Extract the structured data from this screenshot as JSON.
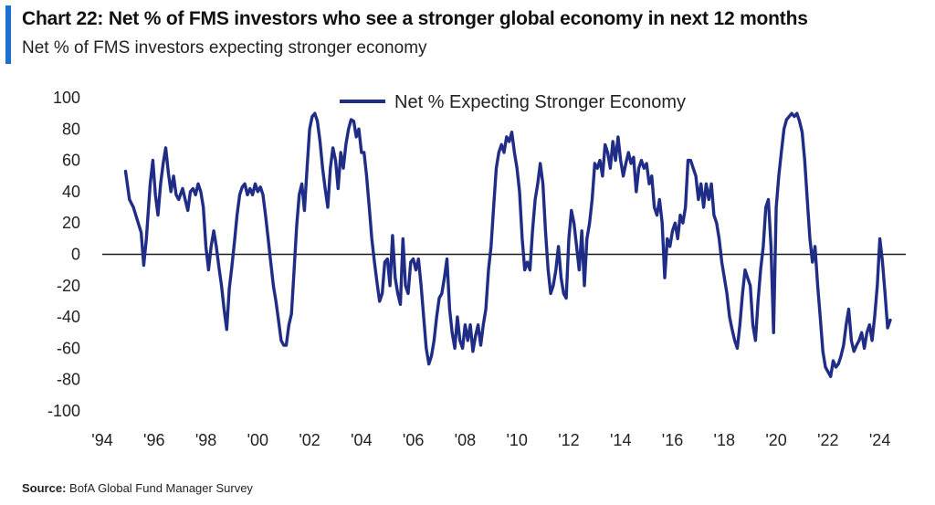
{
  "header": {
    "title": "Chart 22: Net % of FMS investors who see a stronger global economy in next 12 months",
    "subtitle": "Net % of FMS investors expecting stronger economy"
  },
  "footer": {
    "source_label": "Source:",
    "source_text": "BofA Global Fund Manager Survey"
  },
  "colors": {
    "accent": "#1a6fd1",
    "series": "#1f2d86",
    "axis": "#1a1a1a"
  },
  "chart_data": {
    "type": "line",
    "title": "Chart 22: Net % of FMS investors who see a stronger global economy in next 12 months",
    "subtitle": "Net % of FMS investors expecting stronger economy",
    "xlabel": "",
    "ylabel": "",
    "ylim": [
      -100,
      100
    ],
    "yticks": [
      100,
      80,
      60,
      40,
      20,
      0,
      -20,
      -40,
      -60,
      -80,
      -100
    ],
    "xlim": [
      1994,
      2025
    ],
    "xticks": [
      1994,
      1996,
      1998,
      2000,
      2002,
      2004,
      2006,
      2008,
      2010,
      2012,
      2014,
      2016,
      2018,
      2020,
      2022,
      2024
    ],
    "xtick_labels": [
      "'94",
      "'96",
      "'98",
      "'00",
      "'02",
      "'04",
      "'06",
      "'08",
      "'10",
      "'12",
      "'14",
      "'16",
      "'18",
      "'20",
      "'22",
      "'24"
    ],
    "grid": false,
    "zero_line": true,
    "legend": {
      "position": "top-center"
    },
    "series": [
      {
        "name": "Net % Expecting Stronger Economy",
        "points": [
          [
            1994.9,
            53
          ],
          [
            1995.05,
            35
          ],
          [
            1995.2,
            30
          ],
          [
            1995.35,
            22
          ],
          [
            1995.5,
            14
          ],
          [
            1995.6,
            -7
          ],
          [
            1995.7,
            10
          ],
          [
            1995.85,
            45
          ],
          [
            1995.95,
            60
          ],
          [
            1996.05,
            38
          ],
          [
            1996.15,
            25
          ],
          [
            1996.25,
            45
          ],
          [
            1996.35,
            58
          ],
          [
            1996.45,
            68
          ],
          [
            1996.55,
            52
          ],
          [
            1996.65,
            40
          ],
          [
            1996.75,
            50
          ],
          [
            1996.85,
            38
          ],
          [
            1996.95,
            35
          ],
          [
            1997.1,
            42
          ],
          [
            1997.2,
            35
          ],
          [
            1997.3,
            28
          ],
          [
            1997.4,
            40
          ],
          [
            1997.5,
            42
          ],
          [
            1997.6,
            38
          ],
          [
            1997.7,
            45
          ],
          [
            1997.8,
            40
          ],
          [
            1997.9,
            30
          ],
          [
            1998.0,
            5
          ],
          [
            1998.1,
            -10
          ],
          [
            1998.2,
            5
          ],
          [
            1998.3,
            15
          ],
          [
            1998.4,
            5
          ],
          [
            1998.5,
            -8
          ],
          [
            1998.6,
            -20
          ],
          [
            1998.7,
            -35
          ],
          [
            1998.8,
            -48
          ],
          [
            1998.9,
            -22
          ],
          [
            1999.0,
            -8
          ],
          [
            1999.1,
            8
          ],
          [
            1999.2,
            25
          ],
          [
            1999.3,
            38
          ],
          [
            1999.4,
            43
          ],
          [
            1999.5,
            45
          ],
          [
            1999.6,
            38
          ],
          [
            1999.7,
            42
          ],
          [
            1999.8,
            38
          ],
          [
            1999.9,
            45
          ],
          [
            2000.0,
            40
          ],
          [
            2000.1,
            43
          ],
          [
            2000.2,
            38
          ],
          [
            2000.3,
            25
          ],
          [
            2000.4,
            10
          ],
          [
            2000.5,
            -5
          ],
          [
            2000.6,
            -20
          ],
          [
            2000.7,
            -30
          ],
          [
            2000.8,
            -42
          ],
          [
            2000.9,
            -55
          ],
          [
            2001.0,
            -58
          ],
          [
            2001.1,
            -58
          ],
          [
            2001.2,
            -45
          ],
          [
            2001.3,
            -38
          ],
          [
            2001.4,
            -10
          ],
          [
            2001.5,
            18
          ],
          [
            2001.6,
            38
          ],
          [
            2001.7,
            45
          ],
          [
            2001.8,
            28
          ],
          [
            2001.9,
            55
          ],
          [
            2002.0,
            80
          ],
          [
            2002.1,
            88
          ],
          [
            2002.2,
            90
          ],
          [
            2002.3,
            85
          ],
          [
            2002.4,
            72
          ],
          [
            2002.5,
            55
          ],
          [
            2002.6,
            42
          ],
          [
            2002.7,
            30
          ],
          [
            2002.8,
            55
          ],
          [
            2002.9,
            68
          ],
          [
            2003.0,
            60
          ],
          [
            2003.1,
            42
          ],
          [
            2003.2,
            65
          ],
          [
            2003.3,
            55
          ],
          [
            2003.4,
            70
          ],
          [
            2003.5,
            80
          ],
          [
            2003.6,
            86
          ],
          [
            2003.7,
            85
          ],
          [
            2003.8,
            75
          ],
          [
            2003.9,
            80
          ],
          [
            2004.0,
            65
          ],
          [
            2004.1,
            65
          ],
          [
            2004.2,
            50
          ],
          [
            2004.3,
            30
          ],
          [
            2004.4,
            10
          ],
          [
            2004.5,
            -5
          ],
          [
            2004.6,
            -18
          ],
          [
            2004.7,
            -30
          ],
          [
            2004.8,
            -25
          ],
          [
            2004.9,
            -5
          ],
          [
            2005.0,
            -3
          ],
          [
            2005.1,
            -20
          ],
          [
            2005.2,
            12
          ],
          [
            2005.3,
            -15
          ],
          [
            2005.4,
            -25
          ],
          [
            2005.5,
            -32
          ],
          [
            2005.6,
            10
          ],
          [
            2005.7,
            -20
          ],
          [
            2005.8,
            -25
          ],
          [
            2005.9,
            -5
          ],
          [
            2006.0,
            -3
          ],
          [
            2006.1,
            -10
          ],
          [
            2006.2,
            -3
          ],
          [
            2006.3,
            -20
          ],
          [
            2006.4,
            -40
          ],
          [
            2006.5,
            -60
          ],
          [
            2006.6,
            -70
          ],
          [
            2006.7,
            -65
          ],
          [
            2006.8,
            -55
          ],
          [
            2006.9,
            -40
          ],
          [
            2007.0,
            -28
          ],
          [
            2007.1,
            -25
          ],
          [
            2007.2,
            -15
          ],
          [
            2007.3,
            -3
          ],
          [
            2007.4,
            -35
          ],
          [
            2007.5,
            -50
          ],
          [
            2007.6,
            -60
          ],
          [
            2007.7,
            -40
          ],
          [
            2007.8,
            -55
          ],
          [
            2007.9,
            -60
          ],
          [
            2008.0,
            -45
          ],
          [
            2008.1,
            -55
          ],
          [
            2008.2,
            -45
          ],
          [
            2008.3,
            -62
          ],
          [
            2008.4,
            -52
          ],
          [
            2008.5,
            -45
          ],
          [
            2008.6,
            -58
          ],
          [
            2008.7,
            -45
          ],
          [
            2008.8,
            -35
          ],
          [
            2008.9,
            -10
          ],
          [
            2009.0,
            5
          ],
          [
            2009.1,
            30
          ],
          [
            2009.2,
            55
          ],
          [
            2009.3,
            65
          ],
          [
            2009.4,
            70
          ],
          [
            2009.5,
            65
          ],
          [
            2009.6,
            75
          ],
          [
            2009.7,
            72
          ],
          [
            2009.8,
            78
          ],
          [
            2009.9,
            65
          ],
          [
            2010.0,
            55
          ],
          [
            2010.1,
            40
          ],
          [
            2010.2,
            10
          ],
          [
            2010.3,
            -10
          ],
          [
            2010.4,
            -5
          ],
          [
            2010.5,
            -10
          ],
          [
            2010.6,
            15
          ],
          [
            2010.7,
            35
          ],
          [
            2010.8,
            45
          ],
          [
            2010.9,
            58
          ],
          [
            2011.0,
            45
          ],
          [
            2011.1,
            15
          ],
          [
            2011.2,
            -10
          ],
          [
            2011.3,
            -25
          ],
          [
            2011.4,
            -20
          ],
          [
            2011.5,
            -10
          ],
          [
            2011.6,
            5
          ],
          [
            2011.7,
            -15
          ],
          [
            2011.8,
            -25
          ],
          [
            2011.9,
            -28
          ],
          [
            2012.0,
            10
          ],
          [
            2012.1,
            28
          ],
          [
            2012.2,
            20
          ],
          [
            2012.3,
            5
          ],
          [
            2012.4,
            -10
          ],
          [
            2012.5,
            15
          ],
          [
            2012.6,
            -20
          ],
          [
            2012.7,
            10
          ],
          [
            2012.8,
            20
          ],
          [
            2012.9,
            35
          ],
          [
            2013.0,
            58
          ],
          [
            2013.1,
            55
          ],
          [
            2013.2,
            60
          ],
          [
            2013.3,
            50
          ],
          [
            2013.4,
            70
          ],
          [
            2013.5,
            65
          ],
          [
            2013.6,
            55
          ],
          [
            2013.7,
            72
          ],
          [
            2013.8,
            60
          ],
          [
            2013.9,
            75
          ],
          [
            2014.0,
            60
          ],
          [
            2014.1,
            50
          ],
          [
            2014.2,
            58
          ],
          [
            2014.3,
            65
          ],
          [
            2014.4,
            58
          ],
          [
            2014.5,
            62
          ],
          [
            2014.6,
            40
          ],
          [
            2014.7,
            55
          ],
          [
            2014.8,
            60
          ],
          [
            2014.9,
            55
          ],
          [
            2015.0,
            58
          ],
          [
            2015.1,
            45
          ],
          [
            2015.2,
            50
          ],
          [
            2015.3,
            30
          ],
          [
            2015.4,
            25
          ],
          [
            2015.5,
            35
          ],
          [
            2015.6,
            20
          ],
          [
            2015.7,
            -15
          ],
          [
            2015.8,
            10
          ],
          [
            2015.9,
            5
          ],
          [
            2016.0,
            15
          ],
          [
            2016.1,
            20
          ],
          [
            2016.2,
            10
          ],
          [
            2016.3,
            25
          ],
          [
            2016.4,
            20
          ],
          [
            2016.5,
            30
          ],
          [
            2016.6,
            60
          ],
          [
            2016.7,
            60
          ],
          [
            2016.8,
            55
          ],
          [
            2016.9,
            50
          ],
          [
            2017.0,
            35
          ],
          [
            2017.1,
            45
          ],
          [
            2017.2,
            30
          ],
          [
            2017.3,
            45
          ],
          [
            2017.4,
            35
          ],
          [
            2017.5,
            45
          ],
          [
            2017.6,
            25
          ],
          [
            2017.7,
            20
          ],
          [
            2017.8,
            10
          ],
          [
            2017.9,
            -5
          ],
          [
            2018.0,
            -15
          ],
          [
            2018.1,
            -25
          ],
          [
            2018.2,
            -40
          ],
          [
            2018.3,
            -48
          ],
          [
            2018.4,
            -55
          ],
          [
            2018.5,
            -60
          ],
          [
            2018.6,
            -45
          ],
          [
            2018.7,
            -25
          ],
          [
            2018.8,
            -10
          ],
          [
            2018.9,
            -15
          ],
          [
            2019.0,
            -20
          ],
          [
            2019.1,
            -45
          ],
          [
            2019.2,
            -55
          ],
          [
            2019.3,
            -30
          ],
          [
            2019.4,
            -10
          ],
          [
            2019.5,
            5
          ],
          [
            2019.6,
            30
          ],
          [
            2019.7,
            35
          ],
          [
            2019.8,
            5
          ],
          [
            2019.9,
            -50
          ],
          [
            2020.0,
            30
          ],
          [
            2020.1,
            50
          ],
          [
            2020.2,
            65
          ],
          [
            2020.3,
            80
          ],
          [
            2020.4,
            86
          ],
          [
            2020.5,
            88
          ],
          [
            2020.6,
            90
          ],
          [
            2020.7,
            88
          ],
          [
            2020.8,
            90
          ],
          [
            2020.9,
            85
          ],
          [
            2021.0,
            78
          ],
          [
            2021.1,
            60
          ],
          [
            2021.2,
            35
          ],
          [
            2021.3,
            10
          ],
          [
            2021.4,
            -5
          ],
          [
            2021.5,
            5
          ],
          [
            2021.6,
            -20
          ],
          [
            2021.7,
            -40
          ],
          [
            2021.8,
            -62
          ],
          [
            2021.9,
            -72
          ],
          [
            2022.0,
            -75
          ],
          [
            2022.1,
            -78
          ],
          [
            2022.2,
            -68
          ],
          [
            2022.3,
            -72
          ],
          [
            2022.4,
            -70
          ],
          [
            2022.5,
            -65
          ],
          [
            2022.6,
            -58
          ],
          [
            2022.7,
            -45
          ],
          [
            2022.8,
            -35
          ],
          [
            2022.9,
            -55
          ],
          [
            2023.0,
            -62
          ],
          [
            2023.1,
            -58
          ],
          [
            2023.2,
            -55
          ],
          [
            2023.3,
            -50
          ],
          [
            2023.4,
            -60
          ],
          [
            2023.5,
            -50
          ],
          [
            2023.6,
            -45
          ],
          [
            2023.7,
            -55
          ],
          [
            2023.8,
            -40
          ],
          [
            2023.9,
            -20
          ],
          [
            2024.0,
            10
          ],
          [
            2024.1,
            -5
          ],
          [
            2024.2,
            -25
          ],
          [
            2024.3,
            -47
          ],
          [
            2024.4,
            -42
          ]
        ]
      }
    ]
  }
}
